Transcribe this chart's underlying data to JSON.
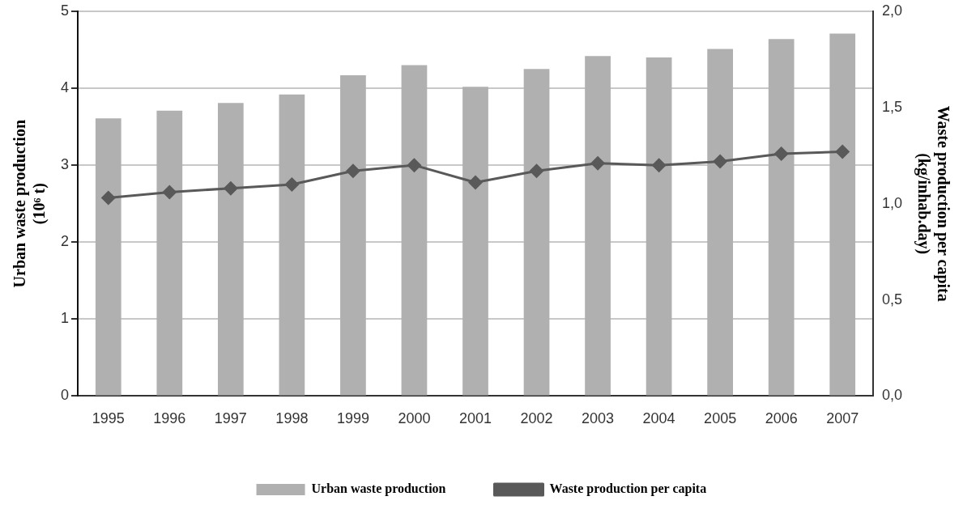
{
  "chart_data": {
    "type": "bar",
    "ylabel": "Urban waste production\n(10⁶ t)",
    "y2label": "Waste production per capita\n(kg/inhab.day)",
    "categories": [
      "1995",
      "1996",
      "1997",
      "1998",
      "1999",
      "2000",
      "2001",
      "2002",
      "2003",
      "2004",
      "2005",
      "2006",
      "2007"
    ],
    "series": [
      {
        "name": "Urban waste production",
        "color": "#b0b0b0",
        "values": [
          3.61,
          3.71,
          3.81,
          3.92,
          4.17,
          4.3,
          4.02,
          4.25,
          4.42,
          4.4,
          4.51,
          4.64,
          4.71
        ]
      },
      {
        "name": "Waste production per capita",
        "type": "line",
        "axis": "y2",
        "color": "#595959",
        "marker": "diamond",
        "values": [
          1.03,
          1.06,
          1.08,
          1.1,
          1.17,
          1.2,
          1.11,
          1.17,
          1.21,
          1.2,
          1.22,
          1.26,
          1.27
        ]
      }
    ],
    "ylim": [
      0,
      5
    ],
    "yticks": [
      0,
      1,
      2,
      3,
      4,
      5
    ],
    "y2lim": [
      0,
      2
    ],
    "y2ticks": [
      {
        "value": 0,
        "label": "0,0"
      },
      {
        "value": 0.5,
        "label": "0,5"
      },
      {
        "value": 1,
        "label": "1,0"
      },
      {
        "value": 1.5,
        "label": "1,5"
      },
      {
        "value": 2,
        "label": "2,0"
      }
    ],
    "grid": "y",
    "legend": "bottom"
  }
}
